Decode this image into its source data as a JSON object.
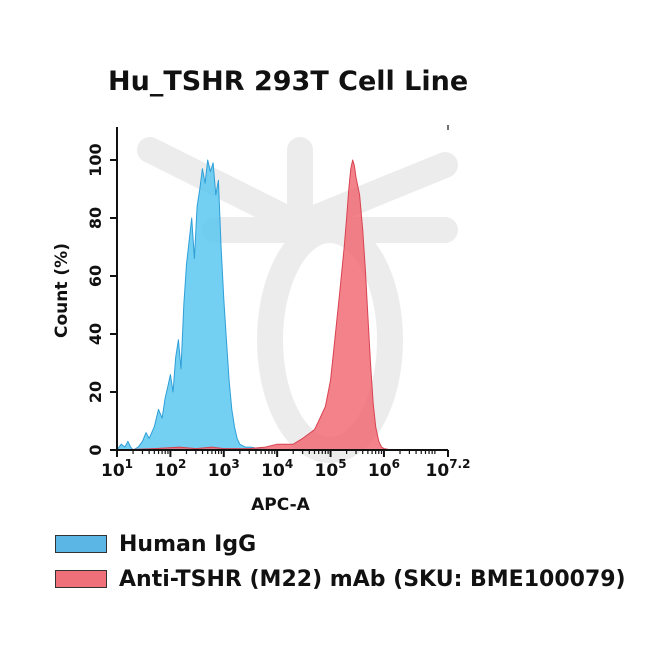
{
  "chart_data": {
    "type": "area",
    "title": "Hu_TSHR 293T Cell Line",
    "xlabel": "APC-A",
    "ylabel": "Count  (%)",
    "xscale": "log",
    "xlim": [
      10,
      15848932
    ],
    "ylim": [
      0,
      110
    ],
    "grid": false,
    "legend_position": "bottom",
    "x_tick_labels": [
      {
        "base": "10",
        "exp": "1",
        "value": 10
      },
      {
        "base": "10",
        "exp": "2",
        "value": 100
      },
      {
        "base": "10",
        "exp": "3",
        "value": 1000
      },
      {
        "base": "10",
        "exp": "4",
        "value": 10000
      },
      {
        "base": "10",
        "exp": "5",
        "value": 100000
      },
      {
        "base": "10",
        "exp": "6",
        "value": 1000000
      },
      {
        "base": "10",
        "exp": "7.2",
        "value": 15848932
      }
    ],
    "y_ticks": [
      0,
      20,
      40,
      60,
      80,
      100
    ],
    "series": [
      {
        "name": "Human IgG",
        "color": "#5bc8f0",
        "x": [
          10,
          12,
          14,
          16,
          18,
          20,
          25,
          30,
          35,
          40,
          50,
          60,
          70,
          80,
          90,
          100,
          112,
          126,
          141,
          158,
          178,
          200,
          224,
          251,
          282,
          316,
          355,
          398,
          447,
          501,
          562,
          631,
          708,
          794,
          891,
          1000,
          1122,
          1259,
          1413,
          1585,
          1778,
          1995,
          2512,
          3162,
          4467,
          6310,
          10000
        ],
        "y": [
          0,
          2,
          1,
          3,
          1,
          0,
          1,
          3,
          6,
          4,
          8,
          14,
          11,
          18,
          22,
          26,
          20,
          32,
          38,
          28,
          50,
          64,
          72,
          80,
          66,
          84,
          90,
          97,
          92,
          100,
          96,
          99,
          88,
          93,
          70,
          52,
          38,
          24,
          14,
          8,
          4,
          2,
          1,
          1,
          0.5,
          0.3,
          0
        ]
      },
      {
        "name": "Anti-TSHR (M22) mAb (SKU: BME100079)",
        "color": "#f0636e",
        "x": [
          10,
          50,
          150,
          300,
          600,
          1000,
          3000,
          6000,
          10000,
          20000,
          30000,
          50000,
          60000,
          80000,
          100000,
          120000,
          150000,
          180000,
          200000,
          220000,
          240000,
          260000,
          280000,
          300000,
          350000,
          400000,
          450000,
          500000,
          560000,
          630000,
          700000,
          800000,
          900000,
          1000000,
          1200000,
          1500000
        ],
        "y": [
          0,
          0.5,
          1,
          0.5,
          1,
          0.5,
          0.5,
          1,
          2,
          2,
          4,
          7,
          10,
          15,
          24,
          38,
          55,
          70,
          80,
          90,
          97,
          100,
          98,
          94,
          88,
          76,
          62,
          46,
          30,
          16,
          8,
          3,
          1,
          0.5,
          0.2,
          0
        ]
      }
    ]
  }
}
